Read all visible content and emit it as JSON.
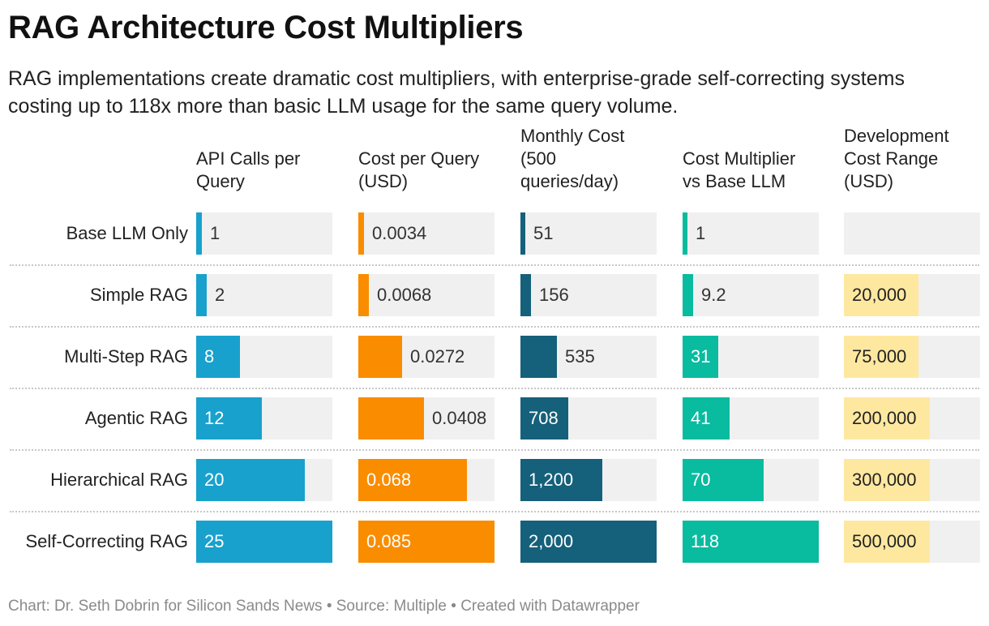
{
  "title": "RAG Architecture Cost Multipliers",
  "subtitle": "RAG implementations create dramatic cost multipliers, with enterprise-grade self-correcting systems costing up to 118x more than basic LLM usage for the same query volume.",
  "footer": "Chart: Dr. Seth Dobrin for Silicon Sands News • Source: Multiple • Created with Datawrapper",
  "colors": {
    "api_calls": "#18a1cd",
    "cost_per_query": "#fa8c00",
    "monthly_cost": "#15607a",
    "multiplier": "#09bb9f",
    "dev_cost": "#fee8a0",
    "cell_background": "#f0f0f0"
  },
  "chart_data": {
    "type": "table",
    "rows": [
      "Base LLM Only",
      "Simple RAG",
      "Multi-Step RAG",
      "Agentic RAG",
      "Hierarchical RAG",
      "Self-Correcting RAG"
    ],
    "columns": [
      {
        "header": "API Calls per Query",
        "color_key": "api_calls",
        "values": [
          1,
          2,
          8,
          12,
          20,
          25
        ],
        "labels": [
          "1",
          "2",
          "8",
          "12",
          "20",
          "25"
        ],
        "max": 25
      },
      {
        "header": "Cost per Query (USD)",
        "color_key": "cost_per_query",
        "values": [
          0.0034,
          0.0068,
          0.0272,
          0.0408,
          0.068,
          0.085
        ],
        "labels": [
          "0.0034",
          "0.0068",
          "0.0272",
          "0.0408",
          "0.068",
          "0.085"
        ],
        "max": 0.085
      },
      {
        "header": "Monthly Cost (500 queries/day)",
        "color_key": "monthly_cost",
        "values": [
          51,
          156,
          535,
          708,
          1200,
          2000
        ],
        "labels": [
          "51",
          "156",
          "535",
          "708",
          "1,200",
          "2,000"
        ],
        "max": 2000
      },
      {
        "header": "Cost Multiplier vs Base LLM",
        "color_key": "multiplier",
        "values": [
          1,
          9.2,
          31,
          41,
          70,
          118
        ],
        "labels": [
          "1",
          "9.2",
          "31",
          "41",
          "70",
          "118"
        ],
        "max": 118
      },
      {
        "header": "Development Cost Range (USD)",
        "color_key": "dev_cost",
        "values": [
          null,
          20000,
          75000,
          200000,
          300000,
          500000
        ],
        "labels": [
          "",
          "20,000",
          "75,000",
          "200,000",
          "300,000",
          "500,000"
        ],
        "fill_fraction": [
          0,
          0.55,
          0.55,
          0.63,
          0.63,
          0.63
        ]
      }
    ]
  }
}
